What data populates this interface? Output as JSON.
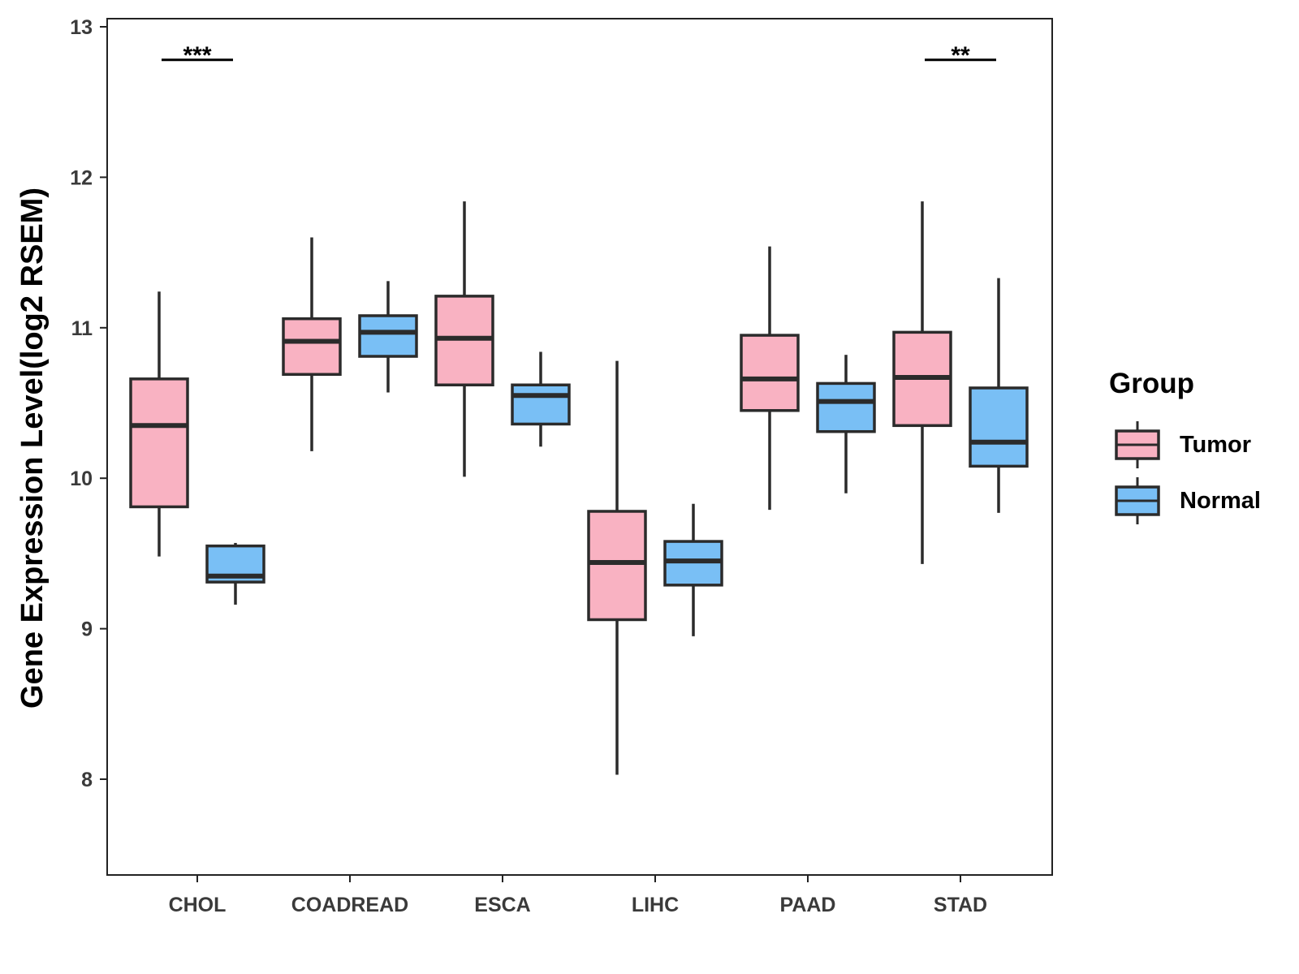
{
  "chart_data": {
    "type": "boxplot",
    "ylabel": "Gene Expression Level(log2 RSEM)",
    "ylim": [
      7.45,
      13.05
    ],
    "yticks": [
      8,
      9,
      10,
      11,
      12,
      13
    ],
    "categories": [
      "CHOL",
      "COADREAD",
      "ESCA",
      "LIHC",
      "PAAD",
      "STAD"
    ],
    "legend": {
      "title": "Group",
      "position": "right",
      "entries": [
        {
          "name": "Tumor",
          "color": "#f9b2c2"
        },
        {
          "name": "Normal",
          "color": "#79bff5"
        }
      ]
    },
    "series": [
      {
        "name": "Tumor",
        "color": "#f9b2c2",
        "boxes": [
          {
            "category": "CHOL",
            "whisker_low": 9.48,
            "q1": 9.81,
            "median": 10.35,
            "q3": 10.66,
            "whisker_high": 11.24
          },
          {
            "category": "COADREAD",
            "whisker_low": 10.18,
            "q1": 10.69,
            "median": 10.91,
            "q3": 11.06,
            "whisker_high": 11.6
          },
          {
            "category": "ESCA",
            "whisker_low": 10.01,
            "q1": 10.62,
            "median": 10.93,
            "q3": 11.21,
            "whisker_high": 11.84
          },
          {
            "category": "LIHC",
            "whisker_low": 8.03,
            "q1": 9.06,
            "median": 9.44,
            "q3": 9.78,
            "whisker_high": 10.78
          },
          {
            "category": "PAAD",
            "whisker_low": 9.79,
            "q1": 10.45,
            "median": 10.66,
            "q3": 10.95,
            "whisker_high": 11.54
          },
          {
            "category": "STAD",
            "whisker_low": 9.43,
            "q1": 10.35,
            "median": 10.67,
            "q3": 10.97,
            "whisker_high": 11.84
          }
        ]
      },
      {
        "name": "Normal",
        "color": "#79bff5",
        "boxes": [
          {
            "category": "CHOL",
            "whisker_low": 9.16,
            "q1": 9.31,
            "median": 9.35,
            "q3": 9.55,
            "whisker_high": 9.57
          },
          {
            "category": "COADREAD",
            "whisker_low": 10.57,
            "q1": 10.81,
            "median": 10.97,
            "q3": 11.08,
            "whisker_high": 11.31
          },
          {
            "category": "ESCA",
            "whisker_low": 10.21,
            "q1": 10.36,
            "median": 10.55,
            "q3": 10.62,
            "whisker_high": 10.84
          },
          {
            "category": "LIHC",
            "whisker_low": 8.95,
            "q1": 9.29,
            "median": 9.45,
            "q3": 9.58,
            "whisker_high": 9.83
          },
          {
            "category": "PAAD",
            "whisker_low": 9.9,
            "q1": 10.31,
            "median": 10.51,
            "q3": 10.63,
            "whisker_high": 10.82
          },
          {
            "category": "STAD",
            "whisker_low": 9.77,
            "q1": 10.08,
            "median": 10.24,
            "q3": 10.6,
            "whisker_high": 11.33
          }
        ]
      }
    ],
    "annotations": [
      {
        "category": "CHOL",
        "label": "***",
        "y": 12.78
      },
      {
        "category": "STAD",
        "label": "**",
        "y": 12.78
      }
    ]
  }
}
